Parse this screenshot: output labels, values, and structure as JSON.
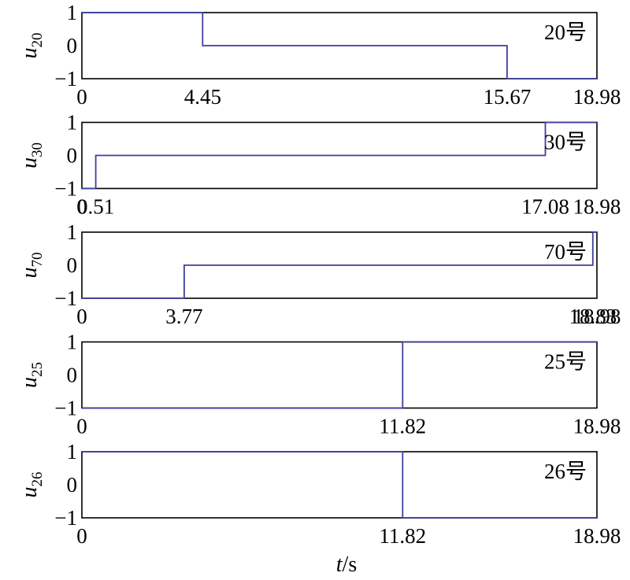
{
  "chart_data": {
    "type": "line",
    "step": true,
    "x_label": "t/s",
    "y_ticks": [
      "1",
      "0",
      "−1"
    ],
    "panels": [
      {
        "y_var": "u",
        "y_sub": "20",
        "tag": "20号",
        "x_range": [
          0,
          18.98
        ],
        "y_range": [
          -1,
          1
        ],
        "x_ticks": [
          "0",
          "4.45",
          "15.67",
          "18.98"
        ],
        "tick_values": [
          0,
          4.45,
          15.67,
          18.98
        ],
        "series": {
          "x": [
            0,
            4.45,
            4.45,
            15.67,
            15.67,
            18.98
          ],
          "y": [
            1,
            1,
            0,
            0,
            -1,
            -1
          ]
        }
      },
      {
        "y_var": "u",
        "y_sub": "30",
        "tag": "30号",
        "x_range": [
          0,
          18.98
        ],
        "y_range": [
          -1,
          1
        ],
        "x_ticks": [
          "0",
          "0.51",
          "17.08",
          "18.98"
        ],
        "tick_values": [
          0,
          0.51,
          17.08,
          18.98
        ],
        "series": {
          "x": [
            0,
            0.51,
            0.51,
            17.08,
            17.08,
            18.98
          ],
          "y": [
            -1,
            -1,
            0,
            0,
            1,
            1
          ]
        }
      },
      {
        "y_var": "u",
        "y_sub": "70",
        "tag": "70号",
        "x_range": [
          0,
          18.98
        ],
        "y_range": [
          -1,
          1
        ],
        "x_ticks": [
          "0",
          "3.77",
          "18.83",
          "18.98"
        ],
        "tick_values": [
          0,
          3.77,
          18.83,
          18.98
        ],
        "series": {
          "x": [
            0,
            3.77,
            3.77,
            18.83,
            18.83,
            18.98
          ],
          "y": [
            -1,
            -1,
            0,
            0,
            1,
            1
          ]
        }
      },
      {
        "y_var": "u",
        "y_sub": "25",
        "tag": "25号",
        "x_range": [
          0,
          18.98
        ],
        "y_range": [
          -1,
          1
        ],
        "x_ticks": [
          "0",
          "11.82",
          "18.98"
        ],
        "tick_values": [
          0,
          11.82,
          18.98
        ],
        "series": {
          "x": [
            0,
            11.82,
            11.82,
            18.98
          ],
          "y": [
            -1,
            -1,
            1,
            1
          ]
        }
      },
      {
        "y_var": "u",
        "y_sub": "26",
        "tag": "26号",
        "x_range": [
          0,
          18.98
        ],
        "y_range": [
          -1,
          1
        ],
        "x_ticks": [
          "0",
          "11.82",
          "18.98"
        ],
        "tick_values": [
          0,
          11.82,
          18.98
        ],
        "series": {
          "x": [
            0,
            11.82,
            11.82,
            18.98
          ],
          "y": [
            1,
            1,
            -1,
            -1
          ]
        }
      }
    ],
    "line_color": "#3f3f9e",
    "grid": false
  }
}
